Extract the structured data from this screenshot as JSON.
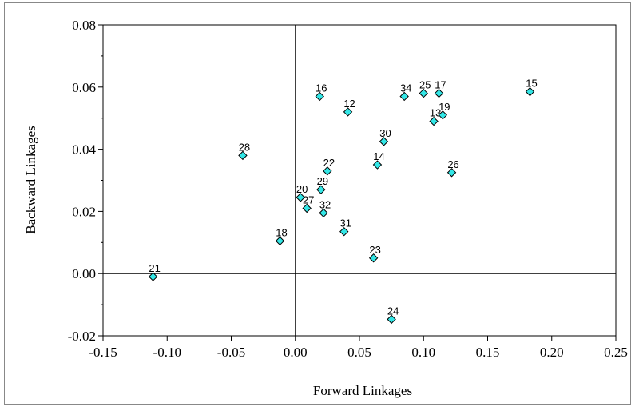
{
  "chart_data": {
    "type": "scatter",
    "xlabel": "Forward Linkages",
    "ylabel": "Backward Linkages",
    "xlim": [
      -0.15,
      0.25
    ],
    "ylim": [
      -0.02,
      0.08
    ],
    "x_ticks": [
      "-0.15",
      "-0.10",
      "-0.05",
      "0.00",
      "0.05",
      "0.10",
      "0.15",
      "0.20",
      "0.25"
    ],
    "y_ticks": [
      "-0.02",
      "0.00",
      "0.02",
      "0.04",
      "0.06",
      "0.08"
    ],
    "grid": false,
    "marker_color": "#33e6e6",
    "points": [
      {
        "label": "21",
        "x": -0.111,
        "y": -0.001
      },
      {
        "label": "28",
        "x": -0.041,
        "y": 0.038
      },
      {
        "label": "18",
        "x": -0.012,
        "y": 0.0105
      },
      {
        "label": "20",
        "x": 0.004,
        "y": 0.0245
      },
      {
        "label": "27",
        "x": 0.009,
        "y": 0.021
      },
      {
        "label": "16",
        "x": 0.019,
        "y": 0.057
      },
      {
        "label": "29",
        "x": 0.02,
        "y": 0.027
      },
      {
        "label": "32",
        "x": 0.022,
        "y": 0.0195
      },
      {
        "label": "22",
        "x": 0.025,
        "y": 0.033
      },
      {
        "label": "31",
        "x": 0.038,
        "y": 0.0135
      },
      {
        "label": "12",
        "x": 0.041,
        "y": 0.052
      },
      {
        "label": "23",
        "x": 0.061,
        "y": 0.005
      },
      {
        "label": "14",
        "x": 0.064,
        "y": 0.035
      },
      {
        "label": "30",
        "x": 0.069,
        "y": 0.0425
      },
      {
        "label": "24",
        "x": 0.075,
        "y": -0.0147
      },
      {
        "label": "34",
        "x": 0.085,
        "y": 0.057
      },
      {
        "label": "25",
        "x": 0.1,
        "y": 0.058
      },
      {
        "label": "13",
        "x": 0.108,
        "y": 0.049
      },
      {
        "label": "17",
        "x": 0.112,
        "y": 0.058
      },
      {
        "label": "19",
        "x": 0.115,
        "y": 0.051
      },
      {
        "label": "26",
        "x": 0.122,
        "y": 0.0325
      },
      {
        "label": "15",
        "x": 0.183,
        "y": 0.0585
      }
    ]
  }
}
